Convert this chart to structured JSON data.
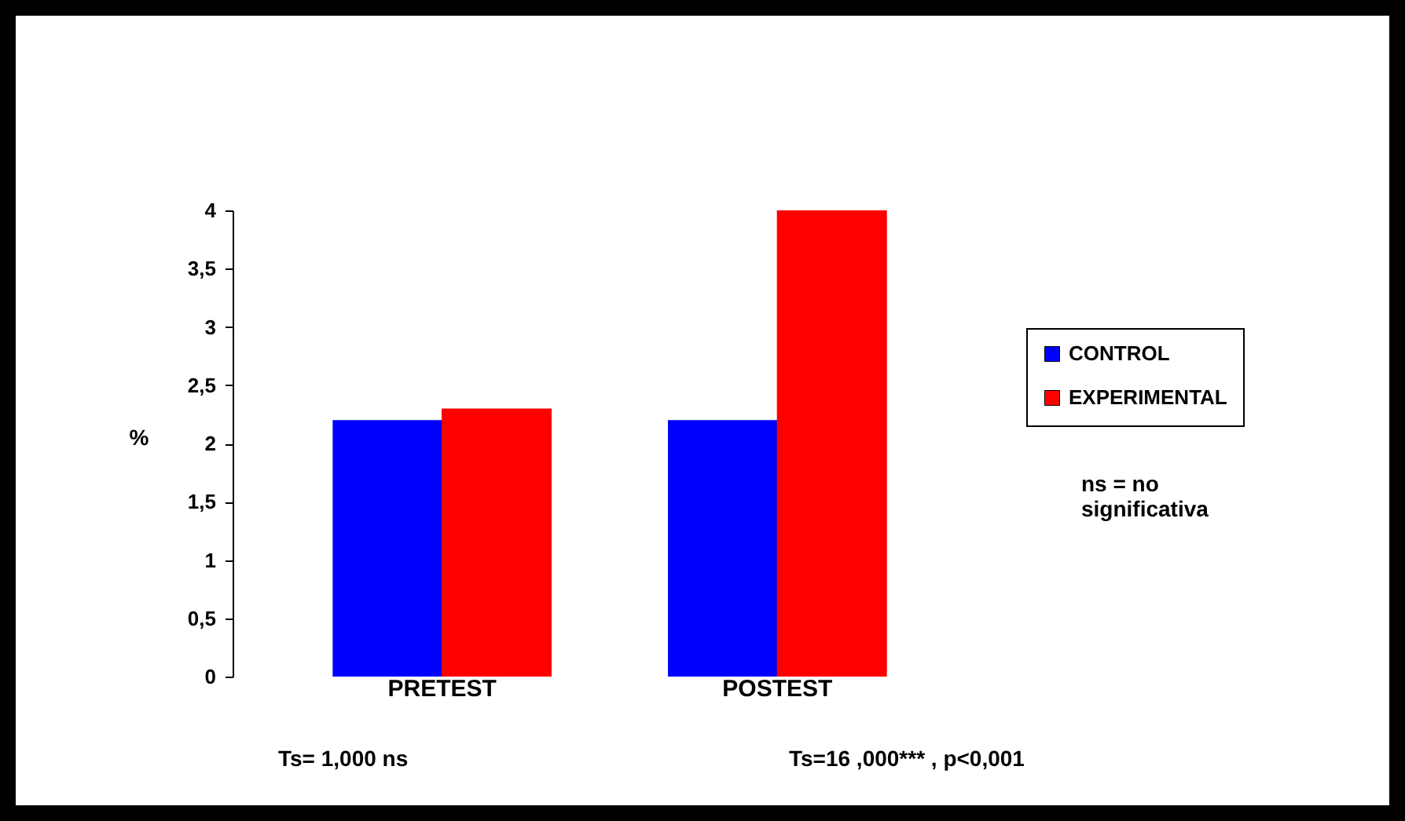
{
  "chart_data": {
    "type": "bar",
    "ylabel": "%",
    "categories": [
      "PRETEST",
      "POSTEST"
    ],
    "series": [
      {
        "name": "CONTROL",
        "color": "#0000ff",
        "values": [
          2.2,
          2.2
        ]
      },
      {
        "name": "EXPERIMENTAL",
        "color": "#ff0000",
        "values": [
          2.3,
          4
        ]
      }
    ],
    "ylim": [
      0,
      4
    ],
    "yticks": [
      0,
      {
        "value": 0.5,
        "label": "0,5"
      },
      1,
      {
        "value": 1.5,
        "label": "1,5"
      },
      2,
      {
        "value": 2.5,
        "label": "2,5"
      },
      3,
      {
        "value": 3.5,
        "label": "3,5"
      },
      4
    ],
    "legend": "right",
    "annotations": [
      "ns = no significativa",
      "Ts= 1,000 ns",
      "Ts=16 ,000*** , p<0,001"
    ]
  }
}
